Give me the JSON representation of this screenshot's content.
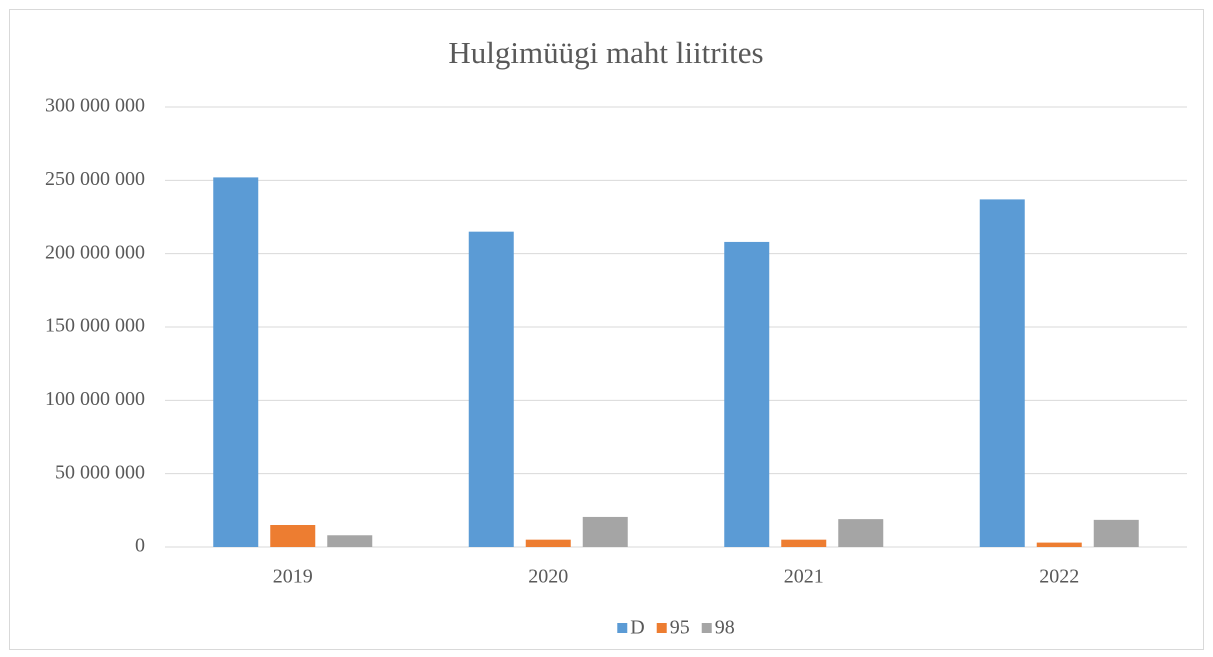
{
  "chart_data": {
    "type": "bar",
    "title": "Hulgimüügi maht liitrites",
    "categories": [
      "2019",
      "2020",
      "2021",
      "2022"
    ],
    "series": [
      {
        "name": "D",
        "color": "#5b9bd5",
        "values": [
          252000000,
          215000000,
          208000000,
          237000000
        ]
      },
      {
        "name": "95",
        "color": "#ed7d31",
        "values": [
          15000000,
          5000000,
          5000000,
          3000000
        ]
      },
      {
        "name": "98",
        "color": "#a5a5a5",
        "values": [
          8000000,
          20500000,
          19000000,
          18500000
        ]
      }
    ],
    "ylim": [
      0,
      300000000
    ],
    "yticks": [
      0,
      {
        "value": 50000000,
        "label": "50 000 000"
      },
      {
        "value": 100000000,
        "label": "100 000 000"
      },
      {
        "value": 150000000,
        "label": "150 000 000"
      },
      {
        "value": 200000000,
        "label": "200 000 000"
      },
      {
        "value": 250000000,
        "label": "250 000 000"
      },
      {
        "value": 300000000,
        "label": "300 000 000"
      }
    ],
    "grid": true,
    "legend": "bottom"
  }
}
